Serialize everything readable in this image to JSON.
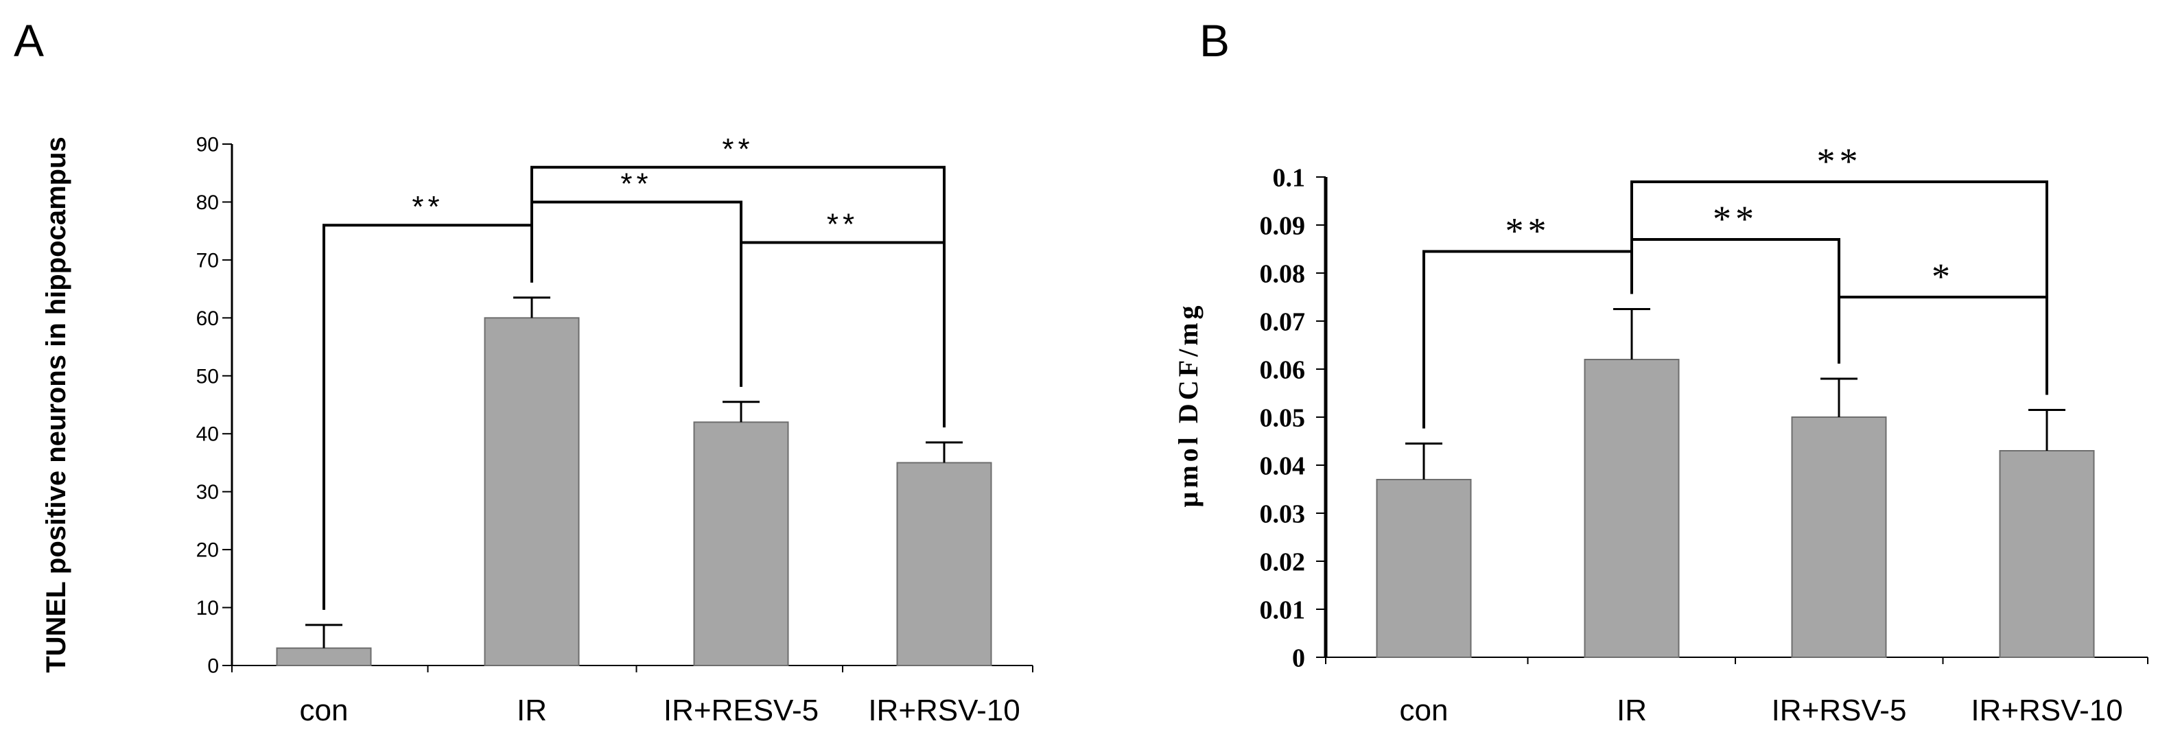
{
  "figure": {
    "panels": [
      {
        "id": "A",
        "label": "A"
      },
      {
        "id": "B",
        "label": "B"
      }
    ]
  },
  "colors": {
    "bar_fill": "#a6a6a6",
    "bar_stroke": "#6e6e6e",
    "axis": "#000000",
    "text": "#000000"
  },
  "chart_data": [
    {
      "panel": "A",
      "type": "bar",
      "title": "",
      "xlabel": "",
      "ylabel": "TUNEL positive neurons in hippocampus",
      "categories": [
        "con",
        "IR",
        "IR+RESV-5",
        "IR+RSV-10"
      ],
      "values": [
        3,
        60,
        42,
        35
      ],
      "errors": [
        4,
        3.5,
        3.5,
        3.5
      ],
      "ylim": [
        0,
        90
      ],
      "yticks": [
        0,
        10,
        20,
        30,
        40,
        50,
        60,
        70,
        80,
        90
      ],
      "ytick_labels": [
        "0",
        "10",
        "20",
        "30",
        "40",
        "50",
        "60",
        "70",
        "80",
        "90"
      ],
      "grid": false,
      "significance": [
        {
          "from": 0,
          "to": 1,
          "level": 76,
          "label": "**"
        },
        {
          "from": 1,
          "to": 2,
          "level": 80,
          "label": "**"
        },
        {
          "from": 1,
          "to": 3,
          "level": 86,
          "label": "**"
        },
        {
          "from": 2,
          "to": 3,
          "level": 73,
          "label": "**"
        }
      ]
    },
    {
      "panel": "B",
      "type": "bar",
      "title": "",
      "xlabel": "",
      "ylabel": "µmol DCF/mg",
      "categories": [
        "con",
        "IR",
        "IR+RSV-5",
        "IR+RSV-10"
      ],
      "values": [
        0.037,
        0.062,
        0.05,
        0.043
      ],
      "errors": [
        0.0075,
        0.0105,
        0.008,
        0.0085
      ],
      "ylim": [
        0,
        0.1
      ],
      "yticks": [
        0,
        0.01,
        0.02,
        0.03,
        0.04,
        0.05,
        0.06,
        0.07,
        0.08,
        0.09,
        0.1
      ],
      "ytick_labels": [
        "0",
        "0.01",
        "0.02",
        "0.03",
        "0.04",
        "0.05",
        "0.06",
        "0.07",
        "0.08",
        "0.09",
        "0.1"
      ],
      "grid": false,
      "significance": [
        {
          "from": 0,
          "to": 1,
          "level": 0.0845,
          "label": "**"
        },
        {
          "from": 1,
          "to": 2,
          "level": 0.087,
          "label": "**"
        },
        {
          "from": 1,
          "to": 3,
          "level": 0.099,
          "label": "**"
        },
        {
          "from": 2,
          "to": 3,
          "level": 0.075,
          "label": "*"
        }
      ]
    }
  ]
}
